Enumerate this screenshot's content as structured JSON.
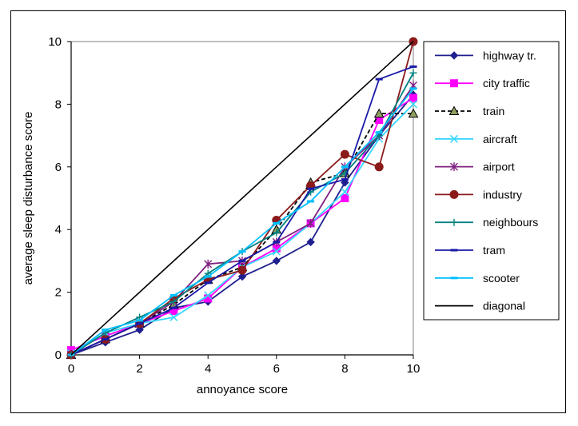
{
  "chart_data": {
    "type": "line",
    "xlabel": "annoyance score",
    "ylabel": "average sleep disturbance score",
    "xlim": [
      0,
      10
    ],
    "ylim": [
      0,
      10
    ],
    "xticks": [
      "0",
      "2",
      "4",
      "6",
      "8",
      "10"
    ],
    "yticks": [
      "0",
      "2",
      "4",
      "6",
      "8",
      "10"
    ],
    "grid": false,
    "legend_position": "right",
    "x": [
      0,
      1,
      2,
      3,
      4,
      5,
      6,
      7,
      8,
      9,
      10
    ],
    "series": [
      {
        "name": "highway tr.",
        "color": "#1f1f8f",
        "marker": "diamond",
        "dash": false,
        "values": [
          0,
          0.4,
          0.8,
          1.5,
          1.7,
          2.5,
          3.0,
          3.6,
          5.5,
          7.0,
          8.3
        ]
      },
      {
        "name": "city traffic",
        "color": "#ff00ff",
        "marker": "square",
        "dash": false,
        "values": [
          0.15,
          0.6,
          1.0,
          1.4,
          1.8,
          2.8,
          3.4,
          4.2,
          5.0,
          7.5,
          8.2
        ]
      },
      {
        "name": "train",
        "color": "#000000",
        "marker": "triangle",
        "dash": true,
        "markerFill": "#8fa060",
        "values": [
          0,
          0.5,
          1.0,
          1.6,
          2.4,
          2.8,
          4.0,
          5.5,
          5.8,
          7.7,
          7.7
        ]
      },
      {
        "name": "aircraft",
        "color": "#33d6ff",
        "marker": "x",
        "dash": false,
        "values": [
          0.05,
          0.7,
          1.0,
          1.2,
          1.9,
          2.8,
          3.3,
          4.2,
          5.2,
          6.9,
          8.0
        ]
      },
      {
        "name": "airport",
        "color": "#7f1f7f",
        "marker": "star",
        "dash": false,
        "values": [
          0,
          0.5,
          1.0,
          1.7,
          2.9,
          3.0,
          3.6,
          4.2,
          6.0,
          7.0,
          8.6
        ]
      },
      {
        "name": "industry",
        "color": "#8b1a1a",
        "marker": "circle",
        "dash": false,
        "values": [
          0,
          0.5,
          1.0,
          1.8,
          2.4,
          2.7,
          4.3,
          5.4,
          6.4,
          6.0,
          10.0
        ]
      },
      {
        "name": "neighbours",
        "color": "#008080",
        "marker": "plus",
        "dash": false,
        "values": [
          0,
          0.7,
          1.2,
          1.7,
          2.6,
          3.3,
          3.9,
          5.2,
          5.8,
          7.0,
          9.0
        ]
      },
      {
        "name": "tram",
        "color": "#1a1aa8",
        "marker": "dash",
        "dash": false,
        "values": [
          0,
          0.5,
          1.0,
          1.5,
          2.3,
          3.0,
          3.6,
          5.3,
          5.6,
          8.8,
          9.2
        ]
      },
      {
        "name": "scooter",
        "color": "#00bfff",
        "marker": "dash",
        "dash": false,
        "values": [
          0,
          0.8,
          1.1,
          1.9,
          2.5,
          3.3,
          4.2,
          4.9,
          6.0,
          7.1,
          8.5
        ]
      },
      {
        "name": "diagonal",
        "color": "#000000",
        "marker": "none",
        "dash": false,
        "values": [
          0,
          1,
          2,
          3,
          4,
          5,
          6,
          7,
          8,
          9,
          10
        ]
      }
    ]
  }
}
